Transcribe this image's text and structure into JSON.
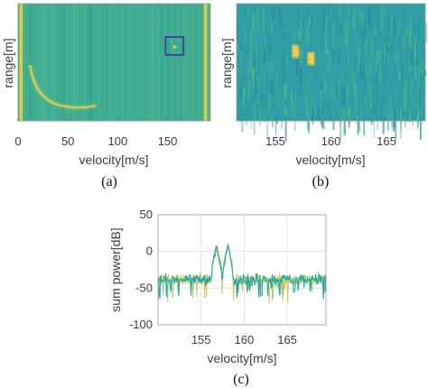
{
  "chart_data": [
    {
      "id": "a",
      "type": "heatmap",
      "caption": "(a)",
      "xlabel": "velocity[m/s]",
      "ylabel": "range[m]",
      "xlim": [
        0,
        193
      ],
      "x_ticks": [
        0,
        50,
        100,
        150
      ],
      "y_ticks": [],
      "background_color": "#3fae92",
      "highlight_color": "#f2c94c",
      "box_color": "#3b4c8c",
      "features": [
        {
          "kind": "bright-column",
          "velocity": 3
        },
        {
          "kind": "bright-column",
          "velocity": 188
        },
        {
          "kind": "curved-streak",
          "velocity_range": [
            12,
            78
          ],
          "label": ""
        },
        {
          "kind": "target-point",
          "velocity": 157
        }
      ],
      "zoom_box_velocity": [
        148,
        166
      ]
    },
    {
      "id": "b",
      "type": "heatmap",
      "caption": "(b)",
      "xlabel": "velocity[m/s]",
      "ylabel": "range[m]",
      "xlim": [
        151.5,
        168.5
      ],
      "x_ticks": [
        155,
        160,
        165
      ],
      "y_ticks": [],
      "background_color": "#2e9fa4",
      "highlight_color": "#f2c94c",
      "targets_velocity": [
        156.8,
        158.2
      ]
    },
    {
      "id": "c",
      "type": "line",
      "caption": "(c)",
      "xlabel": "velocity[m/s]",
      "ylabel": "sum power[dB]",
      "xlim": [
        150,
        169.5
      ],
      "ylim": [
        -100,
        50
      ],
      "x_ticks": [
        155,
        160,
        165
      ],
      "y_ticks": [
        50,
        0,
        -50,
        -100
      ],
      "grid": true,
      "series_colors": [
        "#1aa6a8",
        "#7cc26a",
        "#e0b53a"
      ],
      "noise_floor_db": -38,
      "peaks": [
        {
          "velocity": 156.8,
          "power_db": 12
        },
        {
          "velocity": 158.1,
          "power_db": 13
        }
      ]
    }
  ]
}
